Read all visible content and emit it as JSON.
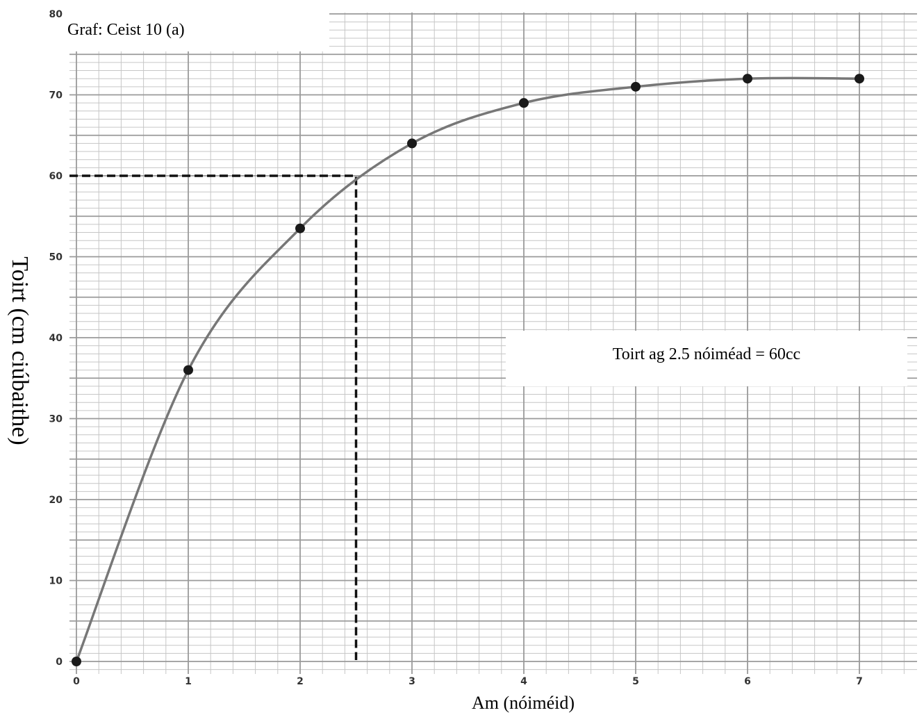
{
  "chart_data": {
    "type": "line",
    "title": "Graf: Ceist 10 (a)",
    "xlabel": "Am (nóiméid)",
    "ylabel": "Toirt (cm ciúbaithe)",
    "xlim": [
      0,
      7.5
    ],
    "ylim": [
      0,
      80
    ],
    "x_ticks": [
      "0",
      "1",
      "2",
      "3",
      "4",
      "5",
      "6",
      "7"
    ],
    "y_ticks": [
      "0",
      "10",
      "20",
      "30",
      "40",
      "50",
      "60",
      "70",
      "80"
    ],
    "grid": true,
    "series": [
      {
        "x": [
          0,
          1,
          2,
          3,
          4,
          5,
          6,
          7
        ],
        "y": [
          0,
          36,
          53.5,
          64,
          69,
          71,
          72,
          72
        ]
      }
    ],
    "guide": {
      "x": 2.5,
      "y": 60
    },
    "annotation": "Toirt ag 2.5 nóiméad = 60cc",
    "colors": {
      "curve": "#777777",
      "points": "#1a1a1a",
      "grid_major": "#9a9a9a",
      "grid_minor": "#c6c6c6",
      "guide": "#111111"
    }
  }
}
